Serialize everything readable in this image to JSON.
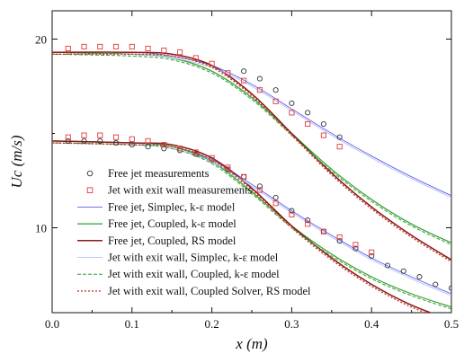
{
  "chart_data": {
    "type": "line",
    "title": "",
    "xlabel": "x (m)",
    "ylabel": "Uc (m/s)",
    "xlim": [
      0.0,
      0.5
    ],
    "ylim": [
      5.5,
      21.5
    ],
    "xticks": [
      "0.0",
      "0.1",
      "0.2",
      "0.3",
      "0.4",
      "0.5"
    ],
    "yticks": [
      "10",
      "20"
    ],
    "grid": false,
    "legend_position": "lower-left",
    "series": [
      {
        "name": "Free jet measurements",
        "style": "markers",
        "marker": "circle",
        "color": "#333333",
        "points": [
          [
            0.02,
            14.6
          ],
          [
            0.04,
            14.6
          ],
          [
            0.06,
            14.6
          ],
          [
            0.08,
            14.5
          ],
          [
            0.1,
            14.4
          ],
          [
            0.12,
            14.3
          ],
          [
            0.14,
            14.2
          ],
          [
            0.16,
            14.1
          ],
          [
            0.18,
            13.9
          ],
          [
            0.2,
            13.6
          ],
          [
            0.22,
            13.1
          ],
          [
            0.24,
            12.7
          ],
          [
            0.26,
            12.2
          ],
          [
            0.28,
            11.6
          ],
          [
            0.3,
            10.9
          ],
          [
            0.32,
            10.4
          ],
          [
            0.34,
            9.8
          ],
          [
            0.36,
            9.3
          ],
          [
            0.38,
            8.9
          ],
          [
            0.4,
            8.5
          ],
          [
            0.42,
            8.0
          ],
          [
            0.44,
            7.7
          ],
          [
            0.46,
            7.4
          ],
          [
            0.48,
            7.0
          ],
          [
            0.5,
            6.8
          ],
          [
            0.24,
            18.3
          ],
          [
            0.26,
            17.9
          ],
          [
            0.28,
            17.3
          ],
          [
            0.3,
            16.6
          ],
          [
            0.32,
            16.1
          ],
          [
            0.34,
            15.5
          ],
          [
            0.36,
            14.8
          ]
        ]
      },
      {
        "name": "Jet with exit wall measurements",
        "style": "markers",
        "marker": "square",
        "color": "#e03c3c",
        "points": [
          [
            0.02,
            14.8
          ],
          [
            0.04,
            14.9
          ],
          [
            0.06,
            14.9
          ],
          [
            0.08,
            14.8
          ],
          [
            0.1,
            14.7
          ],
          [
            0.12,
            14.6
          ],
          [
            0.14,
            14.4
          ],
          [
            0.16,
            14.2
          ],
          [
            0.18,
            14.0
          ],
          [
            0.2,
            13.7
          ],
          [
            0.22,
            13.2
          ],
          [
            0.24,
            12.7
          ],
          [
            0.26,
            12.0
          ],
          [
            0.28,
            11.3
          ],
          [
            0.3,
            10.7
          ],
          [
            0.32,
            10.2
          ],
          [
            0.34,
            9.8
          ],
          [
            0.36,
            9.5
          ],
          [
            0.38,
            9.1
          ],
          [
            0.4,
            8.7
          ],
          [
            0.02,
            19.5
          ],
          [
            0.04,
            19.6
          ],
          [
            0.06,
            19.6
          ],
          [
            0.08,
            19.6
          ],
          [
            0.1,
            19.6
          ],
          [
            0.12,
            19.5
          ],
          [
            0.14,
            19.4
          ],
          [
            0.16,
            19.3
          ],
          [
            0.18,
            19.0
          ],
          [
            0.2,
            18.7
          ],
          [
            0.22,
            18.2
          ],
          [
            0.24,
            17.8
          ],
          [
            0.26,
            17.3
          ],
          [
            0.28,
            16.7
          ],
          [
            0.3,
            16.1
          ],
          [
            0.32,
            15.5
          ],
          [
            0.34,
            14.9
          ],
          [
            0.36,
            14.3
          ]
        ]
      },
      {
        "name": "Free jet, Simplec, k-ε model",
        "style": "solid",
        "color": "#5b5bf5",
        "width": 0.9,
        "points": [
          [
            0,
            14.6
          ],
          [
            0.1,
            14.5
          ],
          [
            0.15,
            14.3
          ],
          [
            0.2,
            13.6
          ],
          [
            0.25,
            12.3
          ],
          [
            0.3,
            10.9
          ],
          [
            0.35,
            9.6
          ],
          [
            0.4,
            8.4
          ],
          [
            0.45,
            7.4
          ],
          [
            0.5,
            6.5
          ]
        ],
        "points_upper": [
          [
            0,
            19.3
          ],
          [
            0.1,
            19.3
          ],
          [
            0.15,
            19.1
          ],
          [
            0.2,
            18.6
          ],
          [
            0.25,
            17.6
          ],
          [
            0.3,
            16.3
          ],
          [
            0.35,
            15.0
          ],
          [
            0.4,
            13.8
          ],
          [
            0.45,
            12.7
          ],
          [
            0.5,
            11.7
          ]
        ]
      },
      {
        "name": "Free jet, Coupled, k-ε model",
        "style": "solid",
        "color": "#2e9e2e",
        "width": 1.2,
        "points": [
          [
            0,
            14.6
          ],
          [
            0.1,
            14.5
          ],
          [
            0.15,
            14.3
          ],
          [
            0.2,
            13.5
          ],
          [
            0.25,
            11.9
          ],
          [
            0.3,
            10.1
          ],
          [
            0.35,
            8.6
          ],
          [
            0.4,
            7.4
          ],
          [
            0.45,
            6.5
          ],
          [
            0.5,
            5.8
          ]
        ],
        "points_upper": [
          [
            0,
            19.3
          ],
          [
            0.1,
            19.2
          ],
          [
            0.15,
            19.0
          ],
          [
            0.2,
            18.3
          ],
          [
            0.25,
            16.9
          ],
          [
            0.3,
            15.0
          ],
          [
            0.35,
            13.1
          ],
          [
            0.4,
            11.5
          ],
          [
            0.45,
            10.2
          ],
          [
            0.5,
            9.2
          ]
        ]
      },
      {
        "name": "Free jet, Coupled, RS model",
        "style": "solid",
        "color": "#8b1a1a",
        "width": 1.5,
        "points": [
          [
            0,
            14.6
          ],
          [
            0.1,
            14.5
          ],
          [
            0.15,
            14.4
          ],
          [
            0.2,
            13.7
          ],
          [
            0.25,
            12.1
          ],
          [
            0.3,
            10.1
          ],
          [
            0.35,
            8.4
          ],
          [
            0.4,
            7.0
          ],
          [
            0.45,
            5.9
          ],
          [
            0.5,
            5.1
          ]
        ],
        "points_upper": [
          [
            0,
            19.3
          ],
          [
            0.1,
            19.3
          ],
          [
            0.15,
            19.2
          ],
          [
            0.2,
            18.6
          ],
          [
            0.25,
            17.1
          ],
          [
            0.3,
            15.0
          ],
          [
            0.35,
            12.9
          ],
          [
            0.4,
            11.1
          ],
          [
            0.45,
            9.6
          ],
          [
            0.5,
            8.3
          ]
        ]
      },
      {
        "name": "Jet with exit wall, Simplec, k-ε model",
        "style": "solid",
        "color": "#a9b7f2",
        "width": 0.8,
        "points": [
          [
            0,
            14.5
          ],
          [
            0.1,
            14.4
          ],
          [
            0.15,
            14.2
          ],
          [
            0.2,
            13.5
          ],
          [
            0.25,
            12.2
          ],
          [
            0.3,
            10.8
          ],
          [
            0.35,
            9.5
          ],
          [
            0.4,
            8.3
          ],
          [
            0.45,
            7.3
          ],
          [
            0.5,
            6.4
          ]
        ],
        "points_upper": [
          [
            0,
            19.2
          ],
          [
            0.1,
            19.2
          ],
          [
            0.15,
            19.0
          ],
          [
            0.2,
            18.5
          ],
          [
            0.25,
            17.5
          ],
          [
            0.3,
            16.2
          ],
          [
            0.35,
            14.9
          ],
          [
            0.4,
            13.7
          ],
          [
            0.45,
            12.6
          ],
          [
            0.5,
            11.6
          ]
        ]
      },
      {
        "name": "Jet with exit wall, Coupled, k-ε model",
        "style": "dashed",
        "color": "#2e9e2e",
        "width": 1.0,
        "points": [
          [
            0,
            14.5
          ],
          [
            0.1,
            14.4
          ],
          [
            0.15,
            14.2
          ],
          [
            0.2,
            13.4
          ],
          [
            0.25,
            11.8
          ],
          [
            0.3,
            10.0
          ],
          [
            0.35,
            8.5
          ],
          [
            0.4,
            7.3
          ],
          [
            0.45,
            6.4
          ],
          [
            0.5,
            5.7
          ]
        ],
        "points_upper": [
          [
            0,
            19.2
          ],
          [
            0.1,
            19.1
          ],
          [
            0.15,
            18.9
          ],
          [
            0.2,
            18.2
          ],
          [
            0.25,
            16.8
          ],
          [
            0.3,
            14.9
          ],
          [
            0.35,
            13.0
          ],
          [
            0.4,
            11.4
          ],
          [
            0.45,
            10.1
          ],
          [
            0.5,
            9.1
          ]
        ]
      },
      {
        "name": "Jet with exit wall, Coupled Solver, RS model",
        "style": "dotted",
        "color": "#c0392b",
        "width": 1.4,
        "points": [
          [
            0,
            14.5
          ],
          [
            0.1,
            14.4
          ],
          [
            0.15,
            14.3
          ],
          [
            0.2,
            13.6
          ],
          [
            0.25,
            12.0
          ],
          [
            0.3,
            10.0
          ],
          [
            0.35,
            8.3
          ],
          [
            0.4,
            6.9
          ],
          [
            0.45,
            5.8
          ],
          [
            0.5,
            5.0
          ]
        ],
        "points_upper": [
          [
            0,
            19.2
          ],
          [
            0.1,
            19.2
          ],
          [
            0.15,
            19.1
          ],
          [
            0.2,
            18.5
          ],
          [
            0.25,
            17.0
          ],
          [
            0.3,
            14.9
          ],
          [
            0.35,
            12.8
          ],
          [
            0.4,
            11.0
          ],
          [
            0.45,
            9.5
          ],
          [
            0.5,
            8.2
          ]
        ]
      }
    ]
  }
}
